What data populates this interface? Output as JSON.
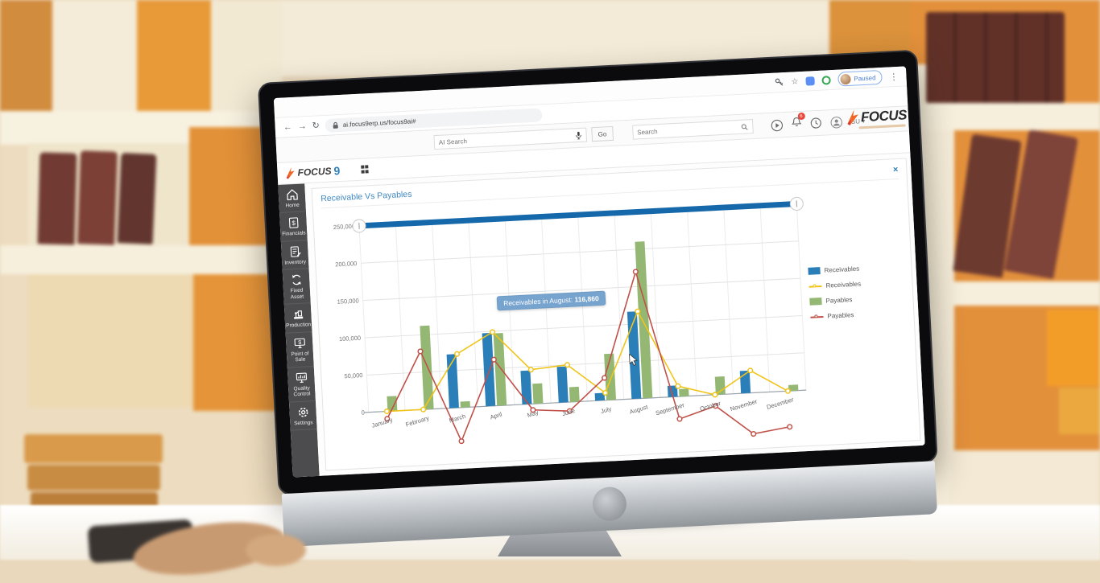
{
  "browser": {
    "url": "ai.focus9erp.us/focus9ai#",
    "profile_label": "Paused"
  },
  "page_header": {
    "ai_search_placeholder": "AI Search",
    "go_label": "Go",
    "search_placeholder": "Search",
    "notification_count": "6",
    "user_initials": "SU",
    "user_caret": "▾",
    "brand_word": "FOCUS"
  },
  "app_bar": {
    "logo_word": "FOCUS",
    "logo_digit": "9"
  },
  "page": {
    "title": "Receivable Vs Payables",
    "close_label": "×"
  },
  "sidebar": {
    "items": [
      {
        "label": "Home",
        "icon": "home-icon"
      },
      {
        "label": "Financials",
        "icon": "financials-icon"
      },
      {
        "label": "Inventory",
        "icon": "inventory-icon"
      },
      {
        "label": "Fixed Asset",
        "icon": "fixed-asset-icon"
      },
      {
        "label": "Production",
        "icon": "production-icon"
      },
      {
        "label": "Point of Sale",
        "icon": "point-of-sale-icon"
      },
      {
        "label": "Quality Control",
        "icon": "quality-control-icon"
      },
      {
        "label": "Settings",
        "icon": "settings-icon"
      }
    ]
  },
  "chart_data": {
    "type": "combo bar+line",
    "title": "Receivable Vs Payables",
    "categories": [
      "January",
      "February",
      "March",
      "April",
      "May",
      "June",
      "July",
      "August",
      "September",
      "October",
      "November",
      "December"
    ],
    "series": [
      {
        "name": "Receivables",
        "render": "bar",
        "color": "#2b7fb8",
        "values": [
          0,
          0,
          72000,
          98000,
          45000,
          48000,
          10000,
          116860,
          15000,
          0,
          30000,
          0
        ]
      },
      {
        "name": "Receivables",
        "render": "line",
        "color": "#f0c419",
        "values": [
          0,
          0,
          72000,
          99000,
          46000,
          50000,
          10000,
          116860,
          14000,
          0,
          30000,
          0
        ]
      },
      {
        "name": "Payables",
        "render": "bar",
        "color": "#94b873",
        "values": [
          20000,
          112000,
          8000,
          97000,
          27000,
          20000,
          62000,
          210000,
          10000,
          24000,
          0,
          8000
        ]
      },
      {
        "name": "Payables",
        "render": "line",
        "color": "#c05048",
        "values": [
          -10000,
          78000,
          -45000,
          62000,
          -8000,
          -12000,
          30000,
          170000,
          -30000,
          -15000,
          -55000,
          -48000
        ]
      }
    ],
    "ylim": [
      0,
      250000
    ],
    "yticks": [
      "0",
      "50,000",
      "100,000",
      "150,000",
      "200,000",
      "250,000"
    ],
    "grid": true,
    "legend_position": "right",
    "legend": [
      {
        "label": "Receivables",
        "marker": "bar",
        "color": "#2b7fb8"
      },
      {
        "label": "Receivables",
        "marker": "line",
        "color": "#f0c419"
      },
      {
        "label": "Payables",
        "marker": "bar",
        "color": "#94b873"
      },
      {
        "label": "Payables",
        "marker": "line",
        "color": "#c05048"
      }
    ],
    "navigator_color": "#1568a9",
    "tooltip": {
      "label": "Receivables in August:",
      "value": "116,860",
      "month_index": 7
    }
  }
}
